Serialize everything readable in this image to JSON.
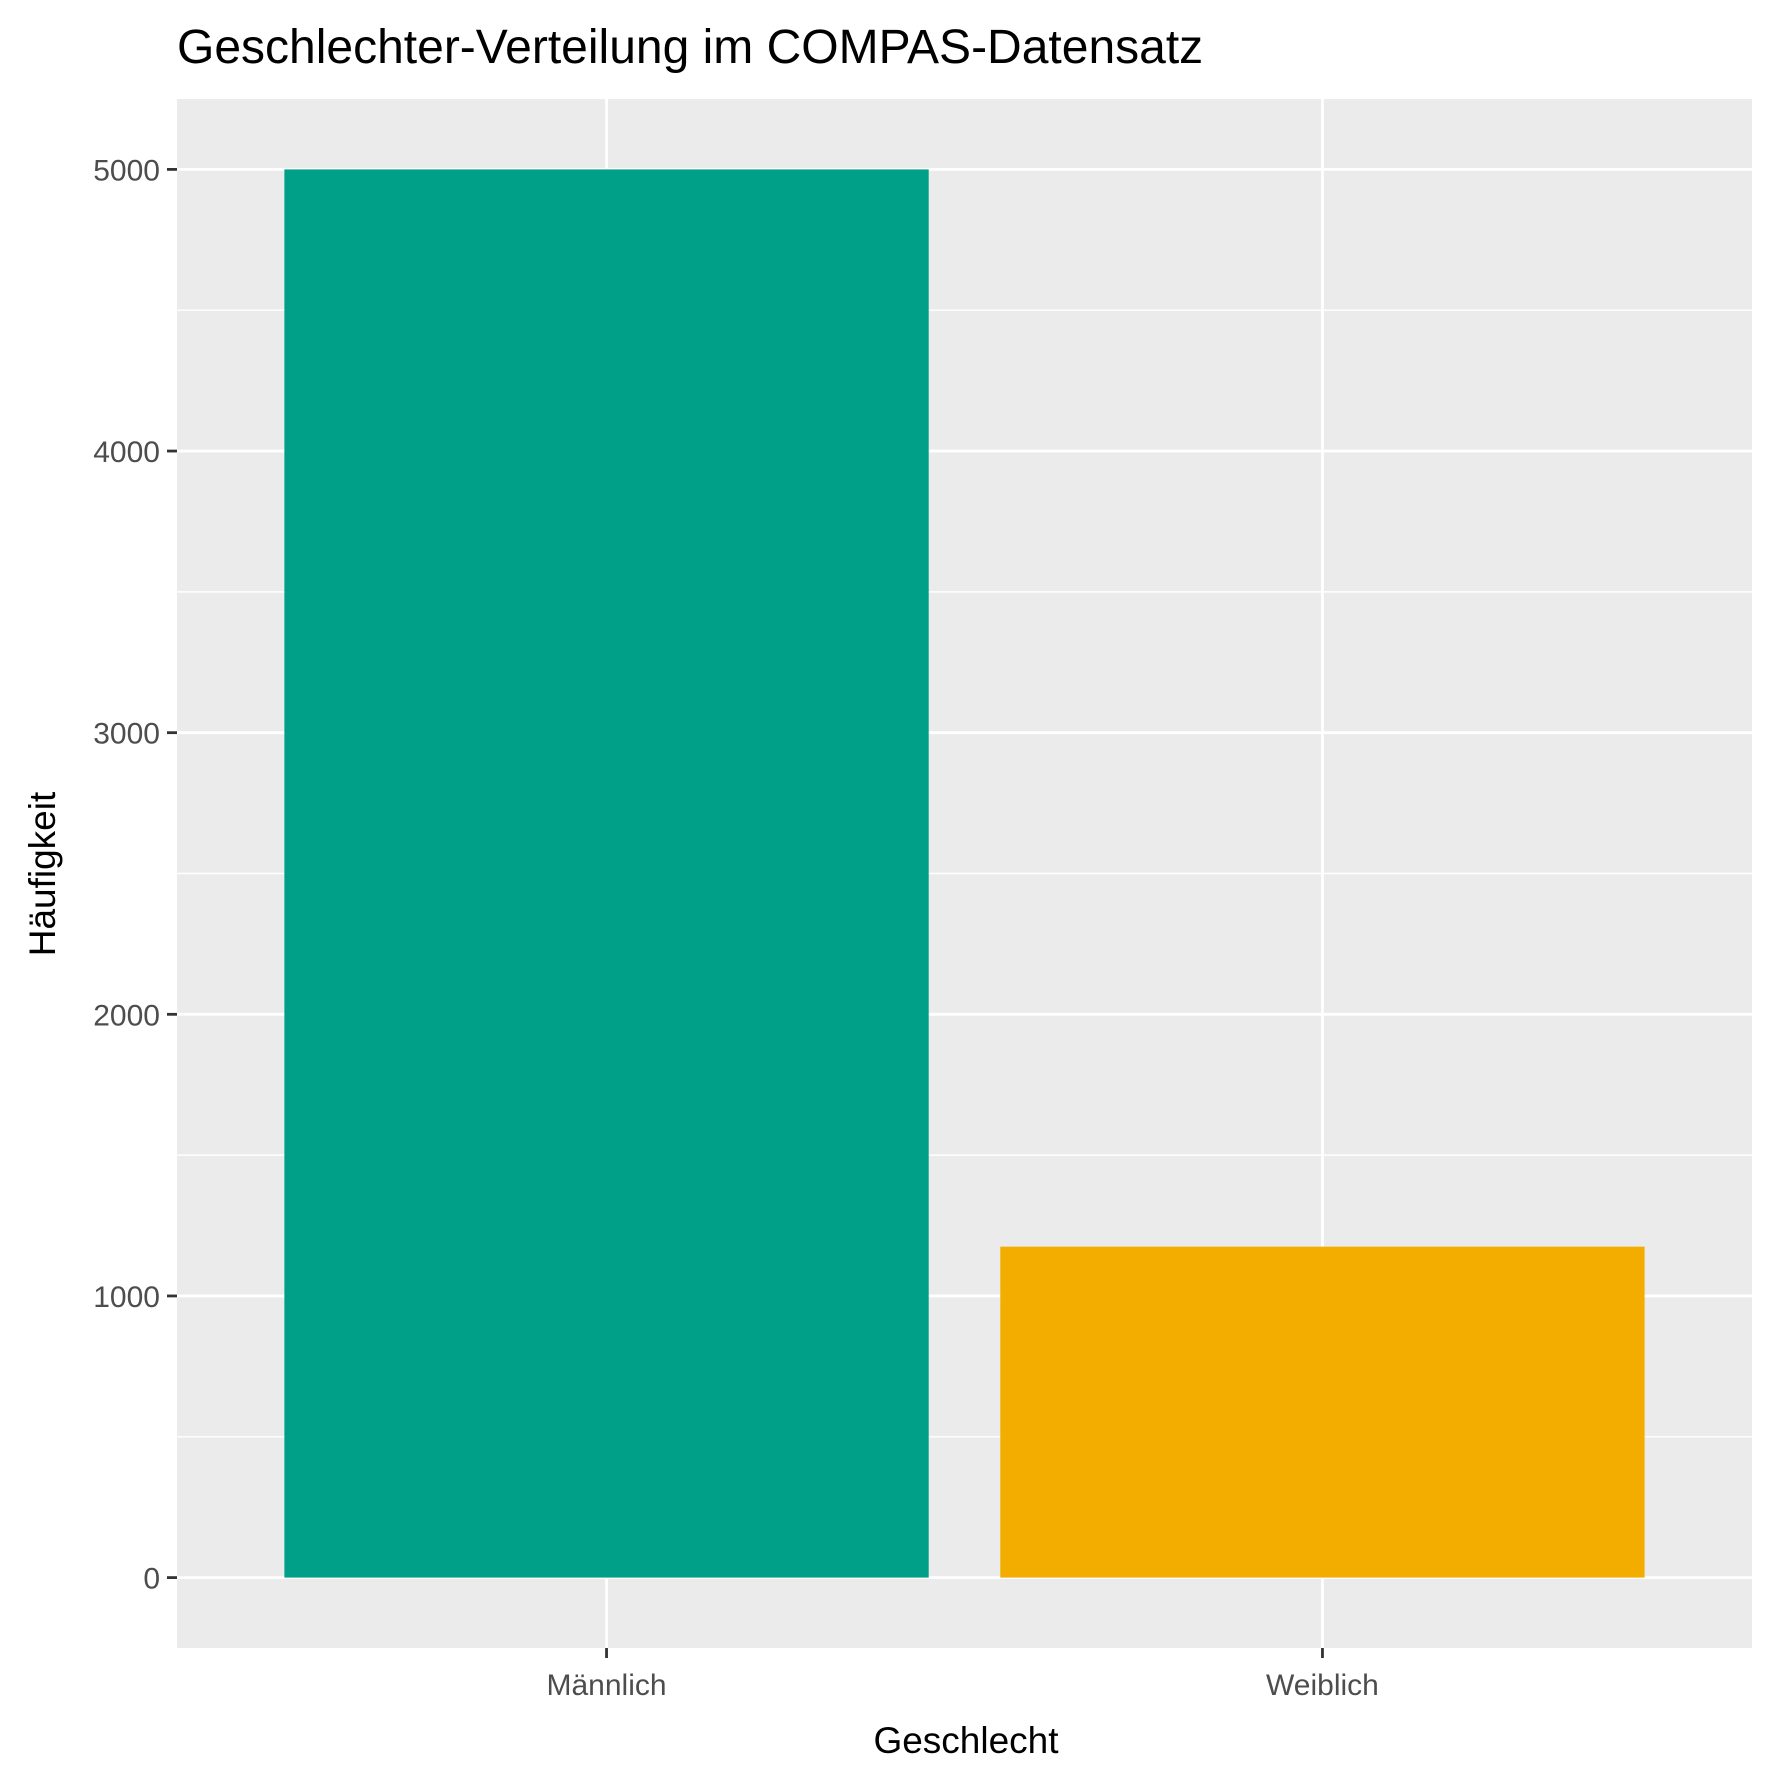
{
  "chart_data": {
    "type": "bar",
    "title": "Geschlechter-Verteilung im COMPAS-Datensatz",
    "xlabel": "Geschlecht",
    "ylabel": "Häufigkeit",
    "categories": [
      "Männlich",
      "Weiblich"
    ],
    "values": [
      5000,
      1175
    ],
    "colors": [
      "#00A088",
      "#F2AD00"
    ],
    "ylim": [
      -250,
      5250
    ],
    "yticks": [
      0,
      1000,
      2000,
      3000,
      4000,
      5000
    ],
    "yticks_minor": [
      500,
      1500,
      2500,
      3500,
      4500
    ],
    "grid": true,
    "legend": "none",
    "panel_background": "#EBEBEB",
    "grid_color": "#FFFFFF",
    "tick_color": "#333333",
    "tick_label_color": "#4D4D4D"
  }
}
